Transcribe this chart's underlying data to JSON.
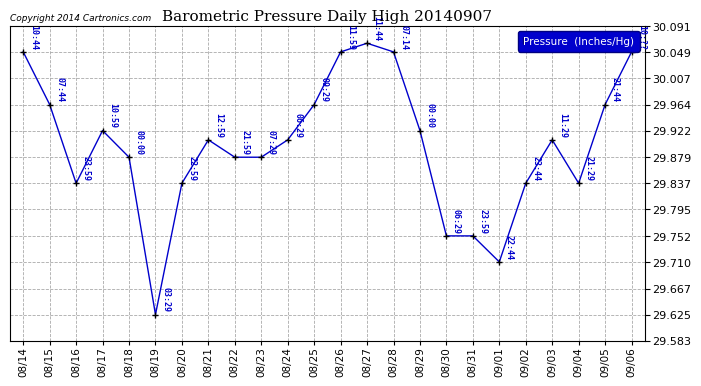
{
  "title": "Barometric Pressure Daily High 20140907",
  "copyright": "Copyright 2014 Cartronics.com",
  "legend_label": "Pressure  (Inches/Hg)",
  "background_color": "#ffffff",
  "plot_bg_color": "#ffffff",
  "grid_color": "#aaaaaa",
  "line_color": "#0000cc",
  "marker_color": "#000000",
  "text_color": "#0000cc",
  "ylim": [
    29.583,
    30.091
  ],
  "yticks": [
    29.583,
    29.625,
    29.667,
    29.71,
    29.752,
    29.795,
    29.837,
    29.879,
    29.922,
    29.964,
    30.007,
    30.049,
    30.091
  ],
  "dates": [
    "08/14",
    "08/15",
    "08/16",
    "08/17",
    "08/18",
    "08/19",
    "08/20",
    "08/21",
    "08/22",
    "08/23",
    "08/24",
    "08/25",
    "08/26",
    "08/27",
    "08/28",
    "08/29",
    "08/30",
    "08/31",
    "09/01",
    "09/02",
    "09/03",
    "09/04",
    "09/05",
    "09/06"
  ],
  "values": [
    30.049,
    29.964,
    29.837,
    29.922,
    29.879,
    29.625,
    29.837,
    29.907,
    29.879,
    29.879,
    29.907,
    29.964,
    30.049,
    30.063,
    30.049,
    29.922,
    29.752,
    29.752,
    29.71,
    29.837,
    29.907,
    29.837,
    29.964,
    30.049
  ],
  "times": [
    "10:44",
    "07:44",
    "23:59",
    "10:59",
    "00:00",
    "03:29",
    "22:59",
    "12:59",
    "21:59",
    "07:29",
    "06:29",
    "09:29",
    "11:59",
    "11:44",
    "07:14",
    "00:00",
    "06:29",
    "23:59",
    "22:44",
    "23:44",
    "11:29",
    "21:29",
    "21:44",
    "10:??"
  ],
  "figwidth": 6.9,
  "figheight": 3.75,
  "dpi": 100
}
